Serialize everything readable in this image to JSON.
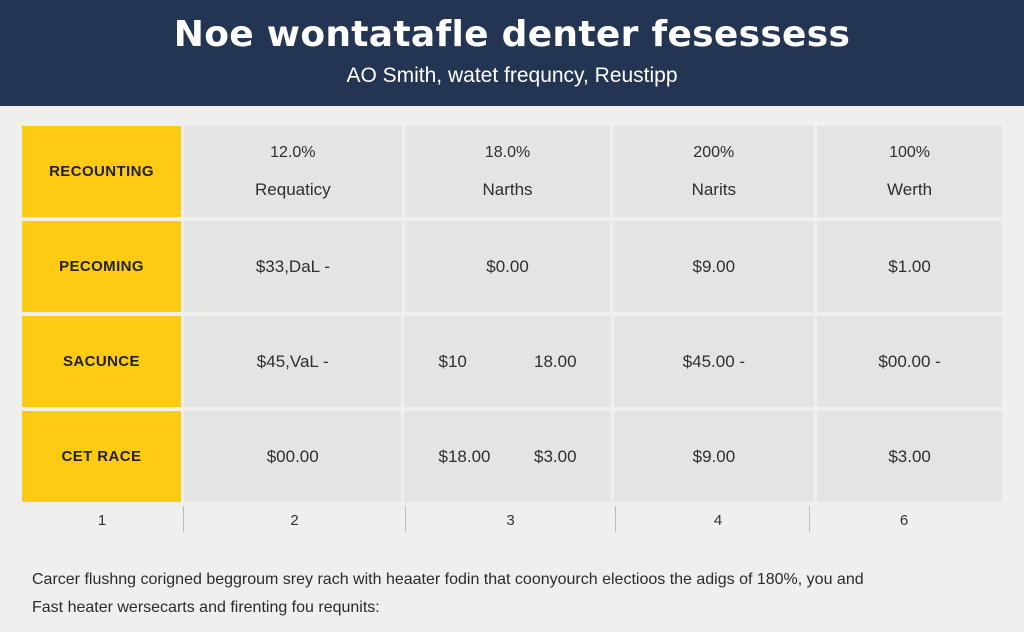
{
  "header": {
    "title": "Noe wontatafle denter fesessess",
    "subtitle": "AO Smith, watet frequncy, Reustipp"
  },
  "table": {
    "rows": [
      {
        "label": "RECOUNTING",
        "cells": [
          {
            "top": "12.0%",
            "bottom": "Requaticy"
          },
          {
            "top": "18.0%",
            "bottom": "Narths"
          },
          {
            "top": "200%",
            "bottom": "Narits"
          },
          {
            "top": "100%",
            "bottom": "Werth"
          }
        ]
      },
      {
        "label": "PECOMING",
        "cells": [
          "$33,DaL -",
          "$0.00",
          "$9.00",
          "$1.00"
        ]
      },
      {
        "label": "SACUNCE",
        "cells": [
          "$45,VaL -",
          [
            "$10",
            "18.00"
          ],
          "$45.00 -",
          "$00.00 -"
        ]
      },
      {
        "label": "CET RACE",
        "cells": [
          "$00.00",
          [
            "$18.00",
            "$3.00"
          ],
          "$9.00",
          "$3.00"
        ]
      }
    ],
    "index": [
      "1",
      "2",
      "3",
      "4",
      "6"
    ]
  },
  "footer": {
    "line1": "Carcer flushng corigned beggroum srey rach with heaater fodin that coonyourch electioos the adigs of 180%, you and",
    "line2": "Fast heater wersecarts and firenting fou requnits:"
  }
}
